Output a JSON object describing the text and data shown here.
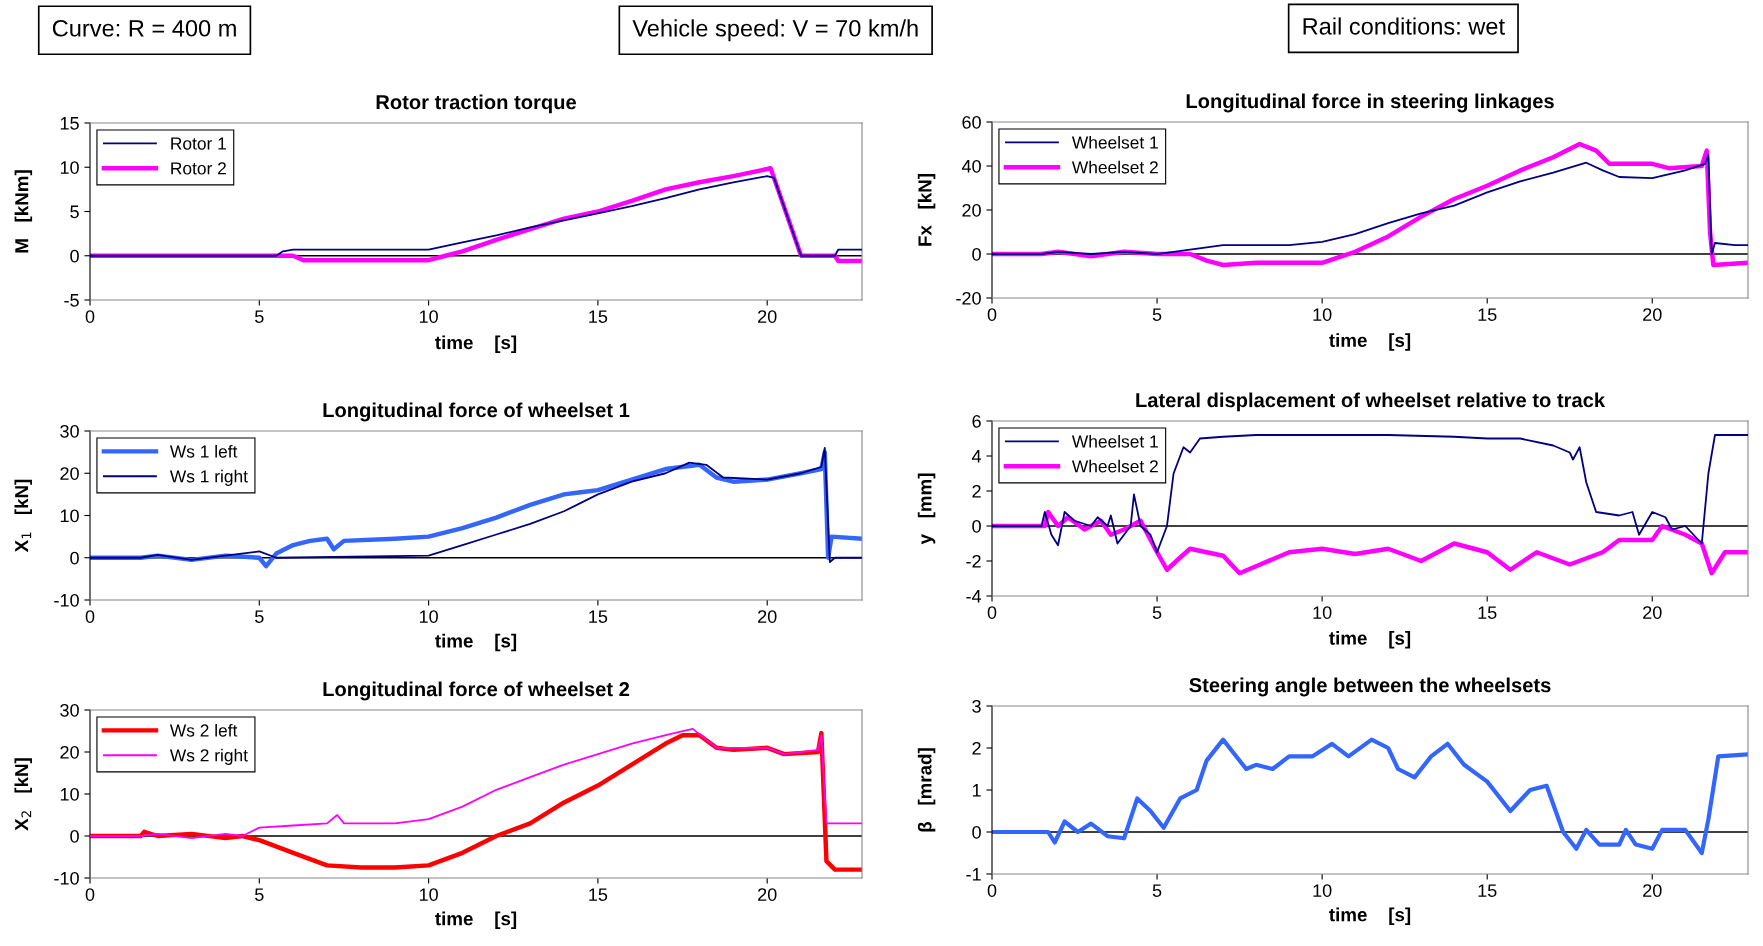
{
  "chart_data": [
    {
      "type": "other",
      "annotations": [
        "Curve: R = 400 m",
        "Vehicle speed: V = 70 km/h",
        "Rail conditions: wet"
      ]
    },
    {
      "type": "line",
      "title": "Rotor traction torque",
      "xlabel": "time    [s]",
      "ylabel": "M   [kNm]",
      "xlim": [
        0,
        22.8
      ],
      "xticks": [
        0,
        5,
        10,
        15,
        20
      ],
      "ylim": [
        -5,
        15
      ],
      "yticks": [
        -5,
        0,
        5,
        10,
        15
      ],
      "ref_lines": [
        {
          "axis": "y",
          "value": 0,
          "color": "#000000"
        }
      ],
      "legend": "top left",
      "series": [
        {
          "name": "Rotor 1",
          "color": "#000080",
          "x": [
            0,
            5.5,
            5.7,
            6,
            10,
            11,
            12,
            13,
            14,
            15,
            16,
            17,
            18,
            19,
            20,
            20.2,
            21,
            22,
            22.1,
            22.8
          ],
          "values": [
            0,
            0,
            0.5,
            0.7,
            0.7,
            1.5,
            2.3,
            3.2,
            4,
            4.8,
            5.6,
            6.5,
            7.5,
            8.3,
            9,
            8.8,
            0,
            0,
            0.7,
            0.7
          ]
        },
        {
          "name": "Rotor 2",
          "color": "#ff00ff",
          "x": [
            0,
            6,
            6.3,
            10,
            10.5,
            11,
            12,
            13,
            14,
            15,
            16,
            17,
            18,
            19,
            20,
            20.1,
            21,
            22,
            22.1,
            22.8
          ],
          "values": [
            0,
            0,
            -0.5,
            -0.5,
            0,
            0.5,
            1.8,
            3,
            4.2,
            5,
            6.2,
            7.5,
            8.3,
            9,
            9.8,
            9.9,
            0,
            0,
            -0.6,
            -0.6
          ]
        }
      ]
    },
    {
      "type": "line",
      "title": "Longitudinal force in steering linkages",
      "xlabel": "time    [s]",
      "ylabel": "Fx   [kN]",
      "xlim": [
        0,
        22.9
      ],
      "xticks": [
        0,
        5,
        10,
        15,
        20
      ],
      "ylim": [
        -20,
        60
      ],
      "yticks": [
        -20,
        0,
        20,
        40,
        60
      ],
      "ref_lines": [
        {
          "axis": "y",
          "value": 0,
          "color": "#000000"
        }
      ],
      "legend": "top left",
      "series": [
        {
          "name": "Wheelset 1",
          "color": "#000080",
          "x": [
            0,
            1.5,
            2,
            3,
            4,
            5,
            5.5,
            6,
            7,
            8,
            9,
            10,
            11,
            12,
            13,
            14,
            15,
            16,
            17,
            18,
            18.5,
            19,
            20,
            21,
            21.6,
            21.7,
            21.8,
            21.9,
            22.5,
            22.9
          ],
          "values": [
            0,
            0,
            1,
            0,
            1,
            0,
            1,
            2,
            4,
            4,
            4,
            5.5,
            9,
            14,
            18.5,
            22,
            28,
            33,
            37,
            41.5,
            38,
            35,
            34.5,
            38,
            41,
            45,
            0,
            5,
            4,
            4
          ]
        },
        {
          "name": "Wheelset 2",
          "color": "#ff00ff",
          "x": [
            0,
            1.5,
            2,
            3,
            4,
            5,
            6,
            6.5,
            7,
            8,
            10,
            11,
            12,
            13,
            14,
            15,
            16,
            17,
            17.8,
            18.3,
            18.7,
            20,
            20.5,
            21.5,
            21.65,
            21.75,
            21.85,
            22.9
          ],
          "values": [
            0,
            0,
            1,
            -1,
            1,
            0,
            0,
            -3,
            -5,
            -4,
            -4,
            1,
            8,
            17,
            25,
            31,
            38,
            44,
            50,
            47,
            41,
            41,
            39,
            40,
            47,
            10,
            -5,
            -4
          ]
        }
      ]
    },
    {
      "type": "line",
      "title": "Longitudinal force of wheelset 1",
      "xlabel": "time    [s]",
      "ylabel": "X$_{1}$   [kN]",
      "xlim": [
        0,
        22.8
      ],
      "xticks": [
        0,
        5,
        10,
        15,
        20
      ],
      "ylim": [
        -10,
        30
      ],
      "yticks": [
        -10,
        0,
        10,
        20,
        30
      ],
      "ref_lines": [
        {
          "axis": "y",
          "value": 0,
          "color": "#000000"
        }
      ],
      "legend": "top left",
      "series": [
        {
          "name": "Ws 1 left",
          "color": "#3366ff",
          "x": [
            0,
            1.5,
            2,
            3,
            4,
            5,
            5.2,
            5.5,
            6,
            6.5,
            7,
            7.2,
            7.5,
            9,
            10,
            11,
            12,
            13,
            14,
            14.5,
            15,
            16,
            17,
            18,
            18.5,
            19,
            20,
            21,
            21.6,
            21.7,
            21.8,
            21.9,
            22.8
          ],
          "values": [
            0,
            0,
            0.5,
            -0.5,
            0.5,
            0,
            -2,
            1,
            3,
            4,
            4.5,
            2,
            4,
            4.5,
            5,
            7,
            9.5,
            12.5,
            15,
            15.5,
            16,
            18.5,
            21,
            22,
            19,
            18,
            18.5,
            20,
            21,
            25,
            0,
            5,
            4.5
          ]
        },
        {
          "name": "Ws 1 right",
          "color": "#000080",
          "x": [
            0,
            1.5,
            2,
            3,
            4,
            5,
            5.5,
            10,
            11,
            12,
            13,
            14,
            15,
            16,
            17,
            17.7,
            18.2,
            18.7,
            20,
            21,
            21.6,
            21.7,
            21.85,
            22,
            22.8
          ],
          "values": [
            0,
            0,
            0.7,
            -0.5,
            0.5,
            1.5,
            0,
            0.5,
            3,
            5.5,
            8,
            11,
            15,
            18,
            20,
            22.5,
            22,
            19,
            18.5,
            20,
            21.5,
            26,
            -1,
            0,
            0
          ]
        }
      ]
    },
    {
      "type": "line",
      "title": "Lateral displacement of wheelset relative to track",
      "xlabel": "time    [s]",
      "ylabel": "y   [mm]",
      "xlim": [
        0,
        22.9
      ],
      "xticks": [
        0,
        5,
        10,
        15,
        20
      ],
      "ylim": [
        -4,
        6
      ],
      "yticks": [
        -4,
        -2,
        0,
        2,
        4,
        6
      ],
      "ref_lines": [
        {
          "axis": "y",
          "value": 0,
          "color": "#000000"
        }
      ],
      "legend": "top left",
      "series": [
        {
          "name": "Wheelset 1",
          "color": "#000080",
          "x": [
            0,
            1.5,
            1.6,
            1.8,
            2,
            2.2,
            2.5,
            3,
            3.2,
            3.5,
            3.6,
            3.8,
            4,
            4.2,
            4.3,
            4.5,
            4.8,
            5,
            5.3,
            5.5,
            5.8,
            6,
            6.3,
            7,
            8,
            10,
            12,
            14,
            15,
            16,
            17,
            17.5,
            17.6,
            17.8,
            18,
            18.3,
            19,
            19.4,
            19.6,
            20,
            20.4,
            20.6,
            21,
            21.5,
            21.7,
            21.9,
            22.9
          ],
          "values": [
            0,
            0,
            0.8,
            -0.5,
            -1.1,
            0.8,
            0.3,
            0,
            0.5,
            0,
            0.6,
            -1,
            -0.5,
            0,
            1.8,
            0,
            -0.5,
            -1.5,
            0,
            3,
            4.5,
            4.2,
            5,
            5.1,
            5.2,
            5.2,
            5.2,
            5.1,
            5,
            5,
            4.6,
            4.2,
            3.8,
            4.5,
            2.5,
            0.8,
            0.6,
            0.8,
            -0.5,
            0.8,
            0.5,
            -0.2,
            0,
            -1,
            3,
            5.2,
            5.2
          ]
        },
        {
          "name": "Wheelset 2",
          "color": "#ff00ff",
          "x": [
            0,
            1.6,
            1.7,
            2,
            2.3,
            2.8,
            3.3,
            3.6,
            4,
            4.5,
            5,
            5.3,
            5.7,
            6,
            7,
            7.5,
            8,
            9,
            10,
            11,
            12,
            13,
            14,
            15,
            15.7,
            16.5,
            17.5,
            18.5,
            19,
            20,
            20.3,
            21,
            21.5,
            21.8,
            22.2,
            22.9
          ],
          "values": [
            0,
            0,
            0.8,
            0,
            0.5,
            -0.2,
            0.3,
            -0.5,
            -0.2,
            0.3,
            -1.5,
            -2.5,
            -1.8,
            -1.3,
            -1.7,
            -2.7,
            -2.3,
            -1.5,
            -1.3,
            -1.6,
            -1.3,
            -2,
            -1,
            -1.5,
            -2.5,
            -1.5,
            -2.2,
            -1.5,
            -0.8,
            -0.8,
            0,
            -0.5,
            -1,
            -2.7,
            -1.5,
            -1.5
          ]
        }
      ]
    },
    {
      "type": "line",
      "title": "Longitudinal force of wheelset 2",
      "xlabel": "time    [s]",
      "ylabel": "X$_{2}$   [kN]",
      "xlim": [
        0,
        22.8
      ],
      "xticks": [
        0,
        5,
        10,
        15,
        20
      ],
      "ylim": [
        -10,
        30
      ],
      "yticks": [
        -10,
        0,
        10,
        20,
        30
      ],
      "ref_lines": [
        {
          "axis": "y",
          "value": 0,
          "color": "#000000"
        }
      ],
      "legend": "top left",
      "series": [
        {
          "name": "Ws 2 left",
          "color": "#ff0000",
          "x": [
            0,
            1.5,
            1.6,
            2,
            3,
            4,
            4.5,
            5,
            6,
            7,
            8,
            9,
            10,
            11,
            12,
            13,
            14,
            15,
            16,
            17,
            17.5,
            18,
            18.5,
            19,
            20,
            20.5,
            21.5,
            21.6,
            21.75,
            22,
            22.8
          ],
          "values": [
            0,
            0,
            1,
            0,
            0.5,
            -0.5,
            0,
            -1,
            -4,
            -7,
            -7.5,
            -7.5,
            -7,
            -4,
            0,
            3,
            8,
            12,
            17,
            22,
            24,
            24,
            21,
            20.5,
            21,
            19.5,
            20,
            24.5,
            -6,
            -8,
            -8
          ]
        },
        {
          "name": "Ws 2 right",
          "color": "#ff00ff",
          "x": [
            0,
            1.5,
            2,
            3,
            4,
            4.5,
            5,
            6,
            7,
            7.3,
            7.5,
            9,
            10,
            11,
            12,
            13,
            14,
            15,
            16,
            17,
            17.8,
            18.5,
            20,
            20.5,
            21.5,
            21.6,
            21.75,
            22.8
          ],
          "values": [
            0,
            0,
            0.5,
            -0.5,
            0.5,
            0,
            2,
            2.5,
            3,
            5,
            3,
            3,
            4,
            7,
            11,
            14,
            17,
            19.5,
            22,
            24,
            25.5,
            21,
            21,
            19.5,
            20.5,
            24,
            3,
            3
          ]
        }
      ]
    },
    {
      "type": "line",
      "title": "Steering angle between the wheelsets",
      "xlabel": "time    [s]",
      "ylabel": "β   [mrad]",
      "xlim": [
        0,
        22.9
      ],
      "xticks": [
        0,
        5,
        10,
        15,
        20
      ],
      "ylim": [
        -1,
        3
      ],
      "yticks": [
        -1,
        0,
        1,
        2,
        3
      ],
      "ref_lines": [
        {
          "axis": "y",
          "value": 0,
          "color": "#000000"
        }
      ],
      "series": [
        {
          "color": "#3366ff",
          "x": [
            0,
            1.7,
            1.9,
            2.2,
            2.6,
            3,
            3.5,
            4,
            4.4,
            4.8,
            5.2,
            5.7,
            6.2,
            6.5,
            7,
            7.3,
            7.7,
            8,
            8.5,
            9,
            9.7,
            10.3,
            10.8,
            11.5,
            12,
            12.3,
            12.8,
            13.3,
            13.8,
            14.3,
            15,
            15.7,
            16.3,
            16.8,
            17.3,
            17.7,
            18,
            18.4,
            19,
            19.2,
            19.5,
            20,
            20.3,
            21,
            21.5,
            21.7,
            22,
            22.9
          ],
          "values": [
            0,
            0,
            -0.25,
            0.25,
            0,
            0.2,
            -0.1,
            -0.15,
            0.8,
            0.5,
            0.1,
            0.8,
            1,
            1.7,
            2.2,
            1.9,
            1.5,
            1.6,
            1.5,
            1.8,
            1.8,
            2.1,
            1.8,
            2.2,
            2,
            1.5,
            1.3,
            1.8,
            2.1,
            1.6,
            1.2,
            0.5,
            1,
            1.1,
            0,
            -0.4,
            0.05,
            -0.3,
            -0.3,
            0.05,
            -0.3,
            -0.4,
            0.05,
            0.05,
            -0.5,
            0.3,
            1.8,
            1.85
          ]
        }
      ]
    }
  ]
}
